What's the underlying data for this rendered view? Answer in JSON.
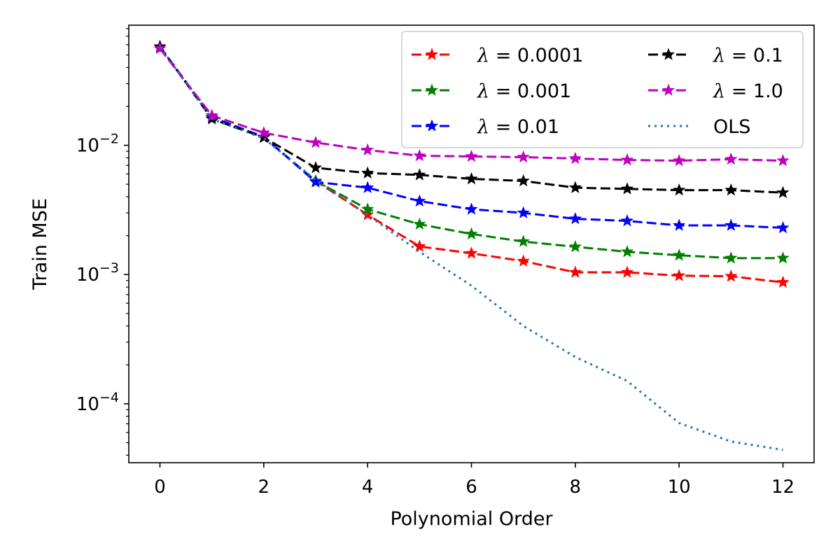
{
  "chart_data": {
    "type": "line",
    "xlabel": "Polynomial Order",
    "ylabel": "Train MSE",
    "yscale": "log",
    "xlim": [
      -0.6,
      12.6
    ],
    "ylim": [
      3.5e-05,
      0.085
    ],
    "xticks": [
      0,
      2,
      4,
      6,
      8,
      10,
      12
    ],
    "xtick_labels": [
      "0",
      "2",
      "4",
      "6",
      "8",
      "10",
      "12"
    ],
    "yticks": [
      0.01,
      0.001,
      0.0001
    ],
    "ytick_labels": [
      {
        "base": "10",
        "exp": "−2"
      },
      {
        "base": "10",
        "exp": "−3"
      },
      {
        "base": "10",
        "exp": "−4"
      }
    ],
    "legend_position": "upper right",
    "legend_columns": 2,
    "x": [
      0,
      1,
      2,
      3,
      4,
      5,
      6,
      7,
      8,
      9,
      10,
      11,
      12
    ],
    "series": [
      {
        "name": "λ = 0.0001",
        "lambda": "0.0001",
        "color": "#ff0000",
        "style": "dashed",
        "marker": "star",
        "values": [
          0.058,
          0.0165,
          0.0115,
          0.0053,
          0.0029,
          0.00165,
          0.00146,
          0.00127,
          0.00104,
          0.00104,
          0.00098,
          0.00097,
          0.00087
        ]
      },
      {
        "name": "λ = 0.001",
        "lambda": "0.001",
        "color": "#008000",
        "style": "dashed",
        "marker": "star",
        "values": [
          0.058,
          0.0165,
          0.0116,
          0.0053,
          0.0032,
          0.00245,
          0.00206,
          0.0018,
          0.00164,
          0.0015,
          0.00141,
          0.00134,
          0.00134
        ]
      },
      {
        "name": "λ = 0.01",
        "lambda": "0.01",
        "color": "#0000ff",
        "style": "dashed",
        "marker": "star",
        "values": [
          0.058,
          0.0165,
          0.0116,
          0.0052,
          0.0047,
          0.0037,
          0.0032,
          0.003,
          0.0027,
          0.0026,
          0.0024,
          0.0024,
          0.0023
        ]
      },
      {
        "name": "λ = 0.1",
        "lambda": "0.1",
        "color": "#000000",
        "style": "dashed",
        "marker": "star",
        "values": [
          0.058,
          0.016,
          0.0115,
          0.0067,
          0.0061,
          0.0059,
          0.0055,
          0.0053,
          0.0047,
          0.0046,
          0.0045,
          0.0045,
          0.0043
        ]
      },
      {
        "name": "λ = 1.0",
        "lambda": "1.0",
        "color": "#bf00bf",
        "style": "dashed",
        "marker": "star",
        "values": [
          0.056,
          0.017,
          0.0125,
          0.0105,
          0.0092,
          0.0083,
          0.0082,
          0.0081,
          0.0079,
          0.0077,
          0.0076,
          0.0078,
          0.0076
        ]
      },
      {
        "name": "OLS",
        "color": "#1f77b4",
        "style": "dotted",
        "marker": "none",
        "values": [
          0.058,
          0.016,
          0.0113,
          0.0054,
          0.0029,
          0.0015,
          0.00082,
          0.0004,
          0.00023,
          0.00015,
          7.1e-05,
          5.1e-05,
          4.4e-05
        ]
      }
    ]
  }
}
